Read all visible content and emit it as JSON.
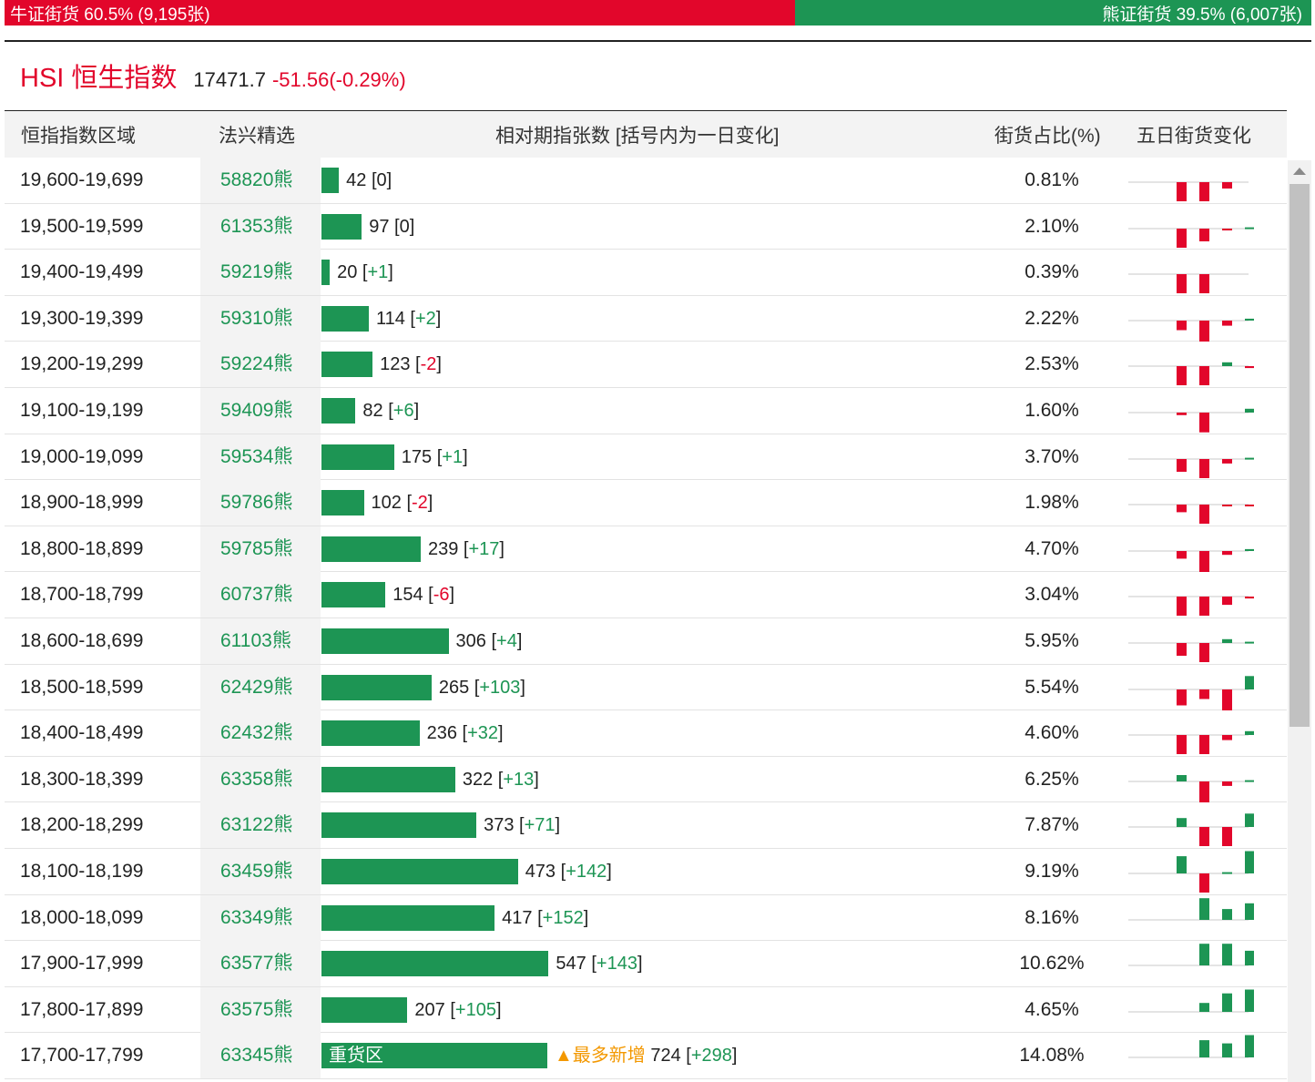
{
  "ratio": {
    "bull_label": "牛证街货 60.5% (9,195张)",
    "bull_share": 0.605,
    "bear_label": "熊证街货 39.5% (6,007张)",
    "bear_share": 0.395,
    "bull_color": "#e2062b",
    "bear_color": "#1d9554"
  },
  "index": {
    "name": "HSI 恒生指数",
    "level": "17471.7",
    "change": "-51.56(-0.29%)"
  },
  "headers": {
    "range": "恒指指数区域",
    "pick": "法兴精选",
    "count": "相对期指张数 [括号内为一日变化]",
    "ratio": "街货占比(%)",
    "trend": "五日街货变化"
  },
  "heavy_zone_label": "重货区",
  "max_increase_label": "▲最多新增",
  "rows": [
    {
      "range": "19,600-19,699",
      "pick": "58820熊",
      "count": 42,
      "change": "0",
      "pct": "0.81%",
      "trend": [
        0,
        -3,
        -3,
        -1,
        0
      ]
    },
    {
      "range": "19,500-19,599",
      "pick": "61353熊",
      "count": 97,
      "change": "0",
      "pct": "2.10%",
      "trend": [
        0,
        -3,
        -2,
        -0.2,
        0.2
      ]
    },
    {
      "range": "19,400-19,499",
      "pick": "59219熊",
      "count": 20,
      "change": "+1",
      "pct": "0.39%",
      "trend": [
        0,
        -3,
        -3,
        0,
        0
      ]
    },
    {
      "range": "19,300-19,399",
      "pick": "59310熊",
      "count": 114,
      "change": "+2",
      "pct": "2.22%",
      "trend": [
        0,
        -1.5,
        -3.5,
        -0.8,
        0.3
      ]
    },
    {
      "range": "19,200-19,299",
      "pick": "59224熊",
      "count": 123,
      "change": "-2",
      "pct": "2.53%",
      "trend": [
        0,
        -3,
        -3,
        0.6,
        -0.3
      ]
    },
    {
      "range": "19,100-19,199",
      "pick": "59409熊",
      "count": 82,
      "change": "+6",
      "pct": "1.60%",
      "trend": [
        0,
        -0.4,
        -3.1,
        0,
        0.6
      ]
    },
    {
      "range": "19,000-19,099",
      "pick": "59534熊",
      "count": 175,
      "change": "+1",
      "pct": "3.70%",
      "trend": [
        0,
        -2,
        -3,
        -0.7,
        0.2
      ]
    },
    {
      "range": "18,900-18,999",
      "pick": "59786熊",
      "count": 102,
      "change": "-2",
      "pct": "1.98%",
      "trend": [
        0,
        -1.2,
        -3,
        -0.2,
        -0.2
      ]
    },
    {
      "range": "18,800-18,899",
      "pick": "59785熊",
      "count": 239,
      "change": "+17",
      "pct": "4.70%",
      "trend": [
        0,
        -1.2,
        -3.3,
        -0.6,
        0.3
      ]
    },
    {
      "range": "18,700-18,799",
      "pick": "60737熊",
      "count": 154,
      "change": "-6",
      "pct": "3.04%",
      "trend": [
        0,
        -3,
        -3,
        -1.3,
        -0.3
      ]
    },
    {
      "range": "18,600-18,699",
      "pick": "61103熊",
      "count": 306,
      "change": "+4",
      "pct": "5.95%",
      "trend": [
        0,
        -2,
        -3,
        0.6,
        0.2
      ]
    },
    {
      "range": "18,500-18,599",
      "pick": "62429熊",
      "count": 265,
      "change": "+103",
      "pct": "5.54%",
      "trend": [
        0,
        -2.5,
        -1.5,
        -3.3,
        2.1
      ]
    },
    {
      "range": "18,400-18,499",
      "pick": "62432熊",
      "count": 236,
      "change": "+32",
      "pct": "4.60%",
      "trend": [
        0,
        -3,
        -3,
        -0.8,
        0.6
      ]
    },
    {
      "range": "18,300-18,399",
      "pick": "63358熊",
      "count": 322,
      "change": "+13",
      "pct": "6.25%",
      "trend": [
        0,
        1,
        -3.3,
        -0.7,
        0.2
      ]
    },
    {
      "range": "18,200-18,299",
      "pick": "63122熊",
      "count": 373,
      "change": "+71",
      "pct": "7.87%",
      "trend": [
        0,
        1.4,
        -3,
        -3,
        2.1
      ]
    },
    {
      "range": "18,100-18,199",
      "pick": "63459熊",
      "count": 473,
      "change": "+142",
      "pct": "9.19%",
      "trend": [
        0,
        2.7,
        -3,
        0.2,
        3.5
      ]
    },
    {
      "range": "18,000-18,099",
      "pick": "63349熊",
      "count": 417,
      "change": "+152",
      "pct": "8.16%",
      "trend": [
        0,
        0,
        3.4,
        1.7,
        2.6
      ]
    },
    {
      "range": "17,900-17,999",
      "pick": "63577熊",
      "count": 547,
      "change": "+143",
      "pct": "10.62%",
      "trend": [
        0,
        0,
        3.4,
        3.4,
        2.3
      ]
    },
    {
      "range": "17,800-17,899",
      "pick": "63575熊",
      "count": 207,
      "change": "+105",
      "pct": "4.65%",
      "trend": [
        0,
        0,
        1.4,
        2.9,
        3.5
      ]
    },
    {
      "range": "17,700-17,799",
      "pick": "63345熊",
      "count": 724,
      "change": "+298",
      "pct": "14.08%",
      "trend": [
        0,
        0,
        2.7,
        2.2,
        3.5
      ],
      "heavy": true
    }
  ]
}
